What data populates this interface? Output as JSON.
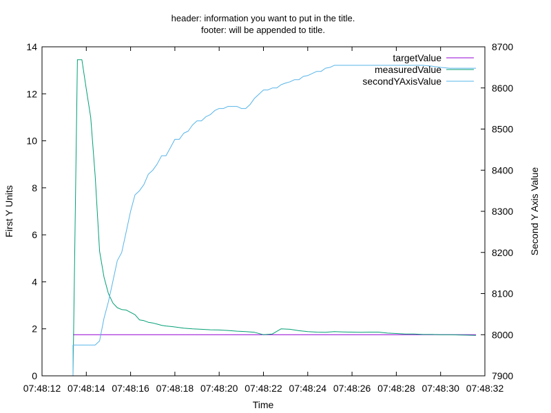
{
  "chart_data": {
    "type": "line",
    "title_lines": [
      "header: information you want to put in the title.",
      "footer: will be appended to title."
    ],
    "xlabel": "Time",
    "ylabel_left": "First Y Units",
    "ylabel_right": "Second Y Axis Value",
    "x_ticks": [
      "07:48:12",
      "07:48:14",
      "07:48:16",
      "07:48:18",
      "07:48:20",
      "07:48:22",
      "07:48:24",
      "07:48:26",
      "07:48:28",
      "07:48:30",
      "07:48:32"
    ],
    "xlim": [
      0,
      20
    ],
    "ylim_left": [
      0,
      14
    ],
    "ylim_right": [
      7900,
      8700
    ],
    "yticks_left": [
      "0",
      "2",
      "4",
      "6",
      "8",
      "10",
      "12",
      "14"
    ],
    "yticks_right": [
      "7900",
      "8000",
      "8100",
      "8200",
      "8300",
      "8400",
      "8500",
      "8600",
      "8700"
    ],
    "legend_position": "top-right",
    "series": [
      {
        "name": "targetValue",
        "axis": "left",
        "color": "#9400d3",
        "x": [
          1.4,
          19.6
        ],
        "y": [
          1.75,
          1.75
        ]
      },
      {
        "name": "measuredValue",
        "axis": "left",
        "color": "#009e73",
        "x": [
          1.4,
          1.6,
          1.8,
          2.0,
          2.2,
          2.4,
          2.6,
          2.8,
          3.0,
          3.2,
          3.4,
          3.6,
          3.8,
          4.0,
          4.2,
          4.4,
          4.6,
          4.8,
          5.0,
          5.2,
          5.4,
          5.6,
          5.8,
          6.0,
          6.4,
          6.8,
          7.2,
          7.6,
          8.0,
          8.4,
          8.8,
          9.2,
          9.6,
          10.0,
          10.4,
          10.8,
          11.2,
          11.6,
          12.0,
          12.4,
          12.8,
          13.2,
          13.6,
          14.0,
          14.4,
          14.8,
          15.2,
          15.6,
          16.0,
          16.4,
          16.8,
          17.2,
          17.6,
          18.0,
          18.4,
          18.8,
          19.2,
          19.6
        ],
        "y": [
          0.0,
          13.45,
          13.45,
          12.2,
          11.0,
          8.5,
          5.3,
          4.2,
          3.5,
          3.1,
          2.9,
          2.82,
          2.8,
          2.7,
          2.6,
          2.38,
          2.35,
          2.28,
          2.25,
          2.2,
          2.15,
          2.12,
          2.1,
          2.08,
          2.03,
          2.0,
          1.98,
          1.96,
          1.95,
          1.93,
          1.9,
          1.88,
          1.85,
          1.75,
          1.78,
          2.0,
          1.98,
          1.92,
          1.88,
          1.86,
          1.85,
          1.88,
          1.87,
          1.86,
          1.85,
          1.86,
          1.86,
          1.82,
          1.8,
          1.78,
          1.78,
          1.76,
          1.76,
          1.75,
          1.75,
          1.74,
          1.73,
          1.72
        ]
      },
      {
        "name": "secondYAxisValue",
        "axis": "right",
        "color": "#56b4e9",
        "x": [
          1.4,
          1.4,
          1.6,
          2.0,
          2.4,
          2.6,
          2.8,
          3.0,
          3.2,
          3.4,
          3.6,
          3.8,
          4.0,
          4.2,
          4.4,
          4.6,
          4.8,
          5.0,
          5.2,
          5.4,
          5.6,
          5.8,
          6.0,
          6.2,
          6.4,
          6.6,
          6.8,
          7.0,
          7.2,
          7.4,
          7.6,
          7.8,
          8.0,
          8.2,
          8.4,
          8.6,
          8.8,
          9.0,
          9.2,
          9.4,
          9.6,
          9.8,
          10.0,
          10.2,
          10.4,
          10.6,
          10.8,
          11.0,
          11.2,
          11.4,
          11.6,
          11.8,
          12.0,
          12.2,
          12.4,
          12.6,
          12.8,
          13.0,
          13.2,
          13.4,
          13.6,
          13.8,
          14.0,
          14.4,
          14.8,
          15.2,
          15.6,
          16.0,
          16.4,
          16.8,
          17.2,
          17.6,
          18.0,
          18.4,
          18.8,
          19.2,
          19.6
        ],
        "y": [
          7900,
          7975,
          7975,
          7975,
          7975,
          7985,
          8040,
          8080,
          8130,
          8180,
          8200,
          8250,
          8300,
          8340,
          8350,
          8365,
          8390,
          8400,
          8415,
          8435,
          8435,
          8455,
          8475,
          8475,
          8490,
          8495,
          8510,
          8520,
          8520,
          8530,
          8535,
          8545,
          8550,
          8550,
          8555,
          8555,
          8555,
          8550,
          8550,
          8560,
          8575,
          8585,
          8595,
          8595,
          8600,
          8600,
          8608,
          8612,
          8615,
          8620,
          8620,
          8628,
          8630,
          8635,
          8640,
          8640,
          8648,
          8650,
          8655,
          8655,
          8655,
          8655,
          8655,
          8655,
          8655,
          8655,
          8655,
          8655,
          8655,
          8655,
          8655,
          8653,
          8650,
          8648,
          8648,
          8648,
          8648
        ]
      }
    ]
  }
}
